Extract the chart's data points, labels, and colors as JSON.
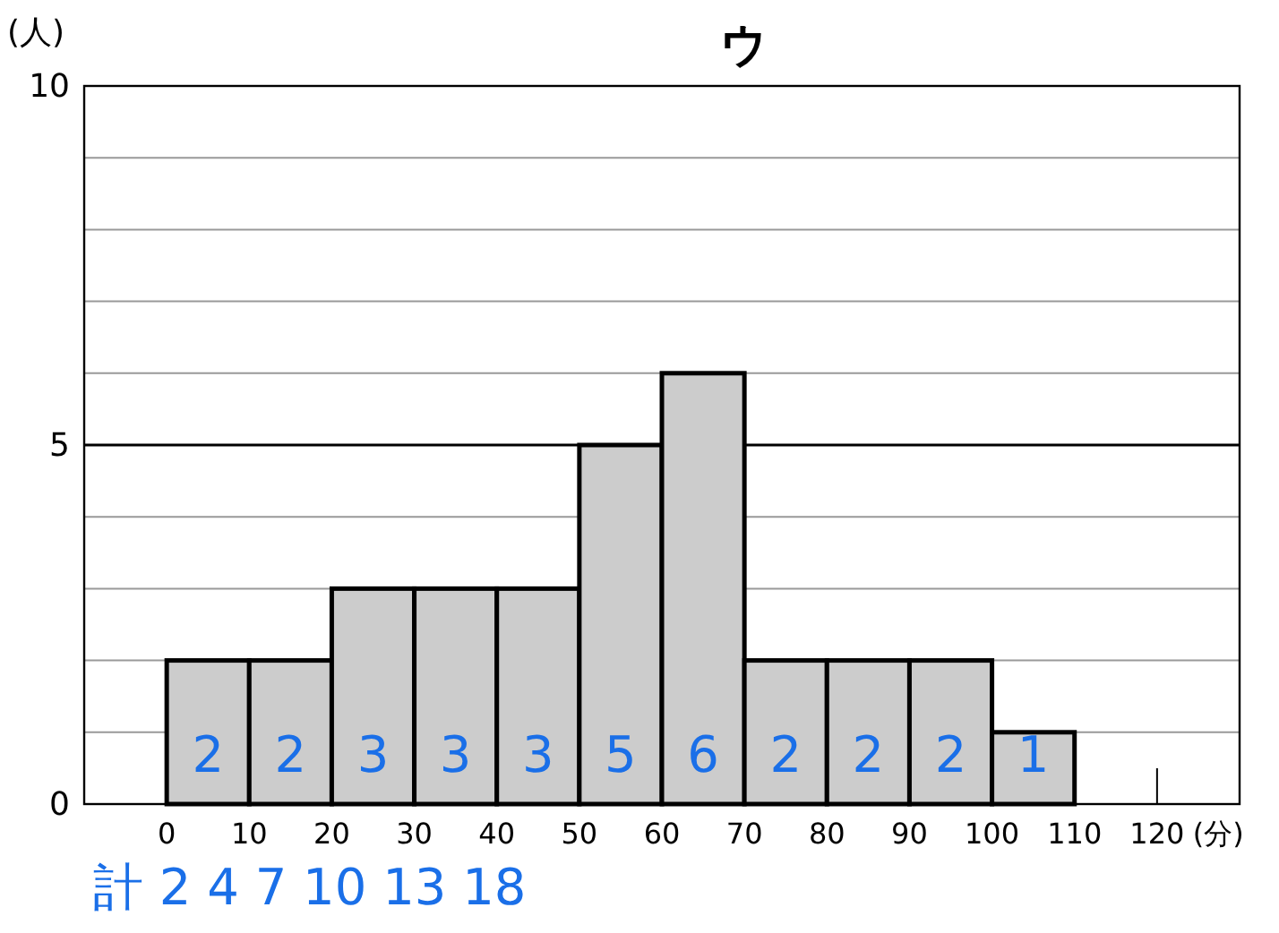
{
  "chart_data": {
    "type": "histogram",
    "title": "ウ",
    "xlabel": "(分)",
    "ylabel": "(人)",
    "bins": [
      0,
      10,
      20,
      30,
      40,
      50,
      60,
      70,
      80,
      90,
      100,
      110
    ],
    "values": [
      2,
      2,
      3,
      3,
      3,
      5,
      6,
      2,
      2,
      2,
      1
    ],
    "color": "#cccccc",
    "xlim": [
      -10,
      130
    ],
    "xticks": [
      0,
      10,
      20,
      30,
      40,
      50,
      60,
      70,
      80,
      90,
      100,
      110,
      120
    ],
    "ylim": [
      0,
      10
    ],
    "yticks": [
      0,
      {
        "value": 1,
        "label": null
      },
      {
        "value": 2,
        "label": null
      },
      {
        "value": 3,
        "label": null
      },
      {
        "value": 4,
        "label": null
      },
      5,
      {
        "value": 6,
        "label": null
      },
      {
        "value": 7,
        "label": null
      },
      {
        "value": 8,
        "label": null
      },
      {
        "value": 9,
        "label": null
      },
      10
    ],
    "grid": "y",
    "data_labels": true,
    "ref_lines": [
      {
        "axis": "y",
        "value": 5,
        "color": "#000000"
      }
    ],
    "annotations": [
      "計 2 4 7 10 13 18"
    ]
  }
}
